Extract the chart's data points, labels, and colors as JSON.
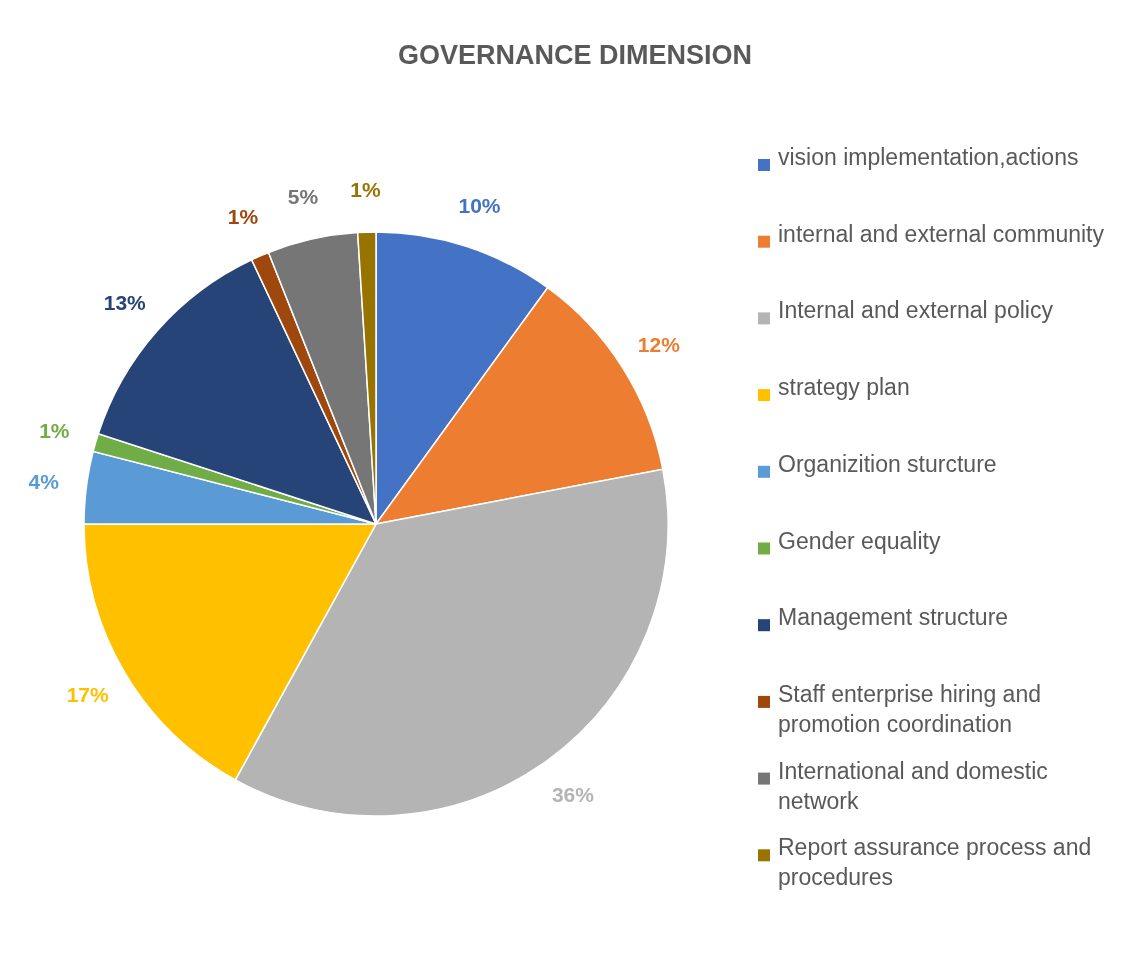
{
  "chart_data": {
    "type": "pie",
    "title": "GOVERNANCE DIMENSION",
    "categories": [
      "vision implementation,actions",
      "internal and external community",
      "Internal and external policy",
      "strategy plan",
      "Organizition sturcture",
      "Gender equality",
      "Management structure",
      "Staff enterprise hiring and promotion coordination",
      "International and domestic network",
      "Report assurance process and procedures"
    ],
    "values": [
      10,
      12,
      36,
      17,
      4,
      1,
      13,
      1,
      5,
      1
    ],
    "colors": [
      "#4472c4",
      "#ed7d31",
      "#b4b4b4",
      "#ffc000",
      "#5b9bd5",
      "#70ad47",
      "#264478",
      "#9e480e",
      "#767676",
      "#997300"
    ],
    "value_labels": [
      "10%",
      "12%",
      "36%",
      "17%",
      "4%",
      "1%",
      "13%",
      "1%",
      "5%",
      "1%"
    ],
    "legend": "right"
  }
}
